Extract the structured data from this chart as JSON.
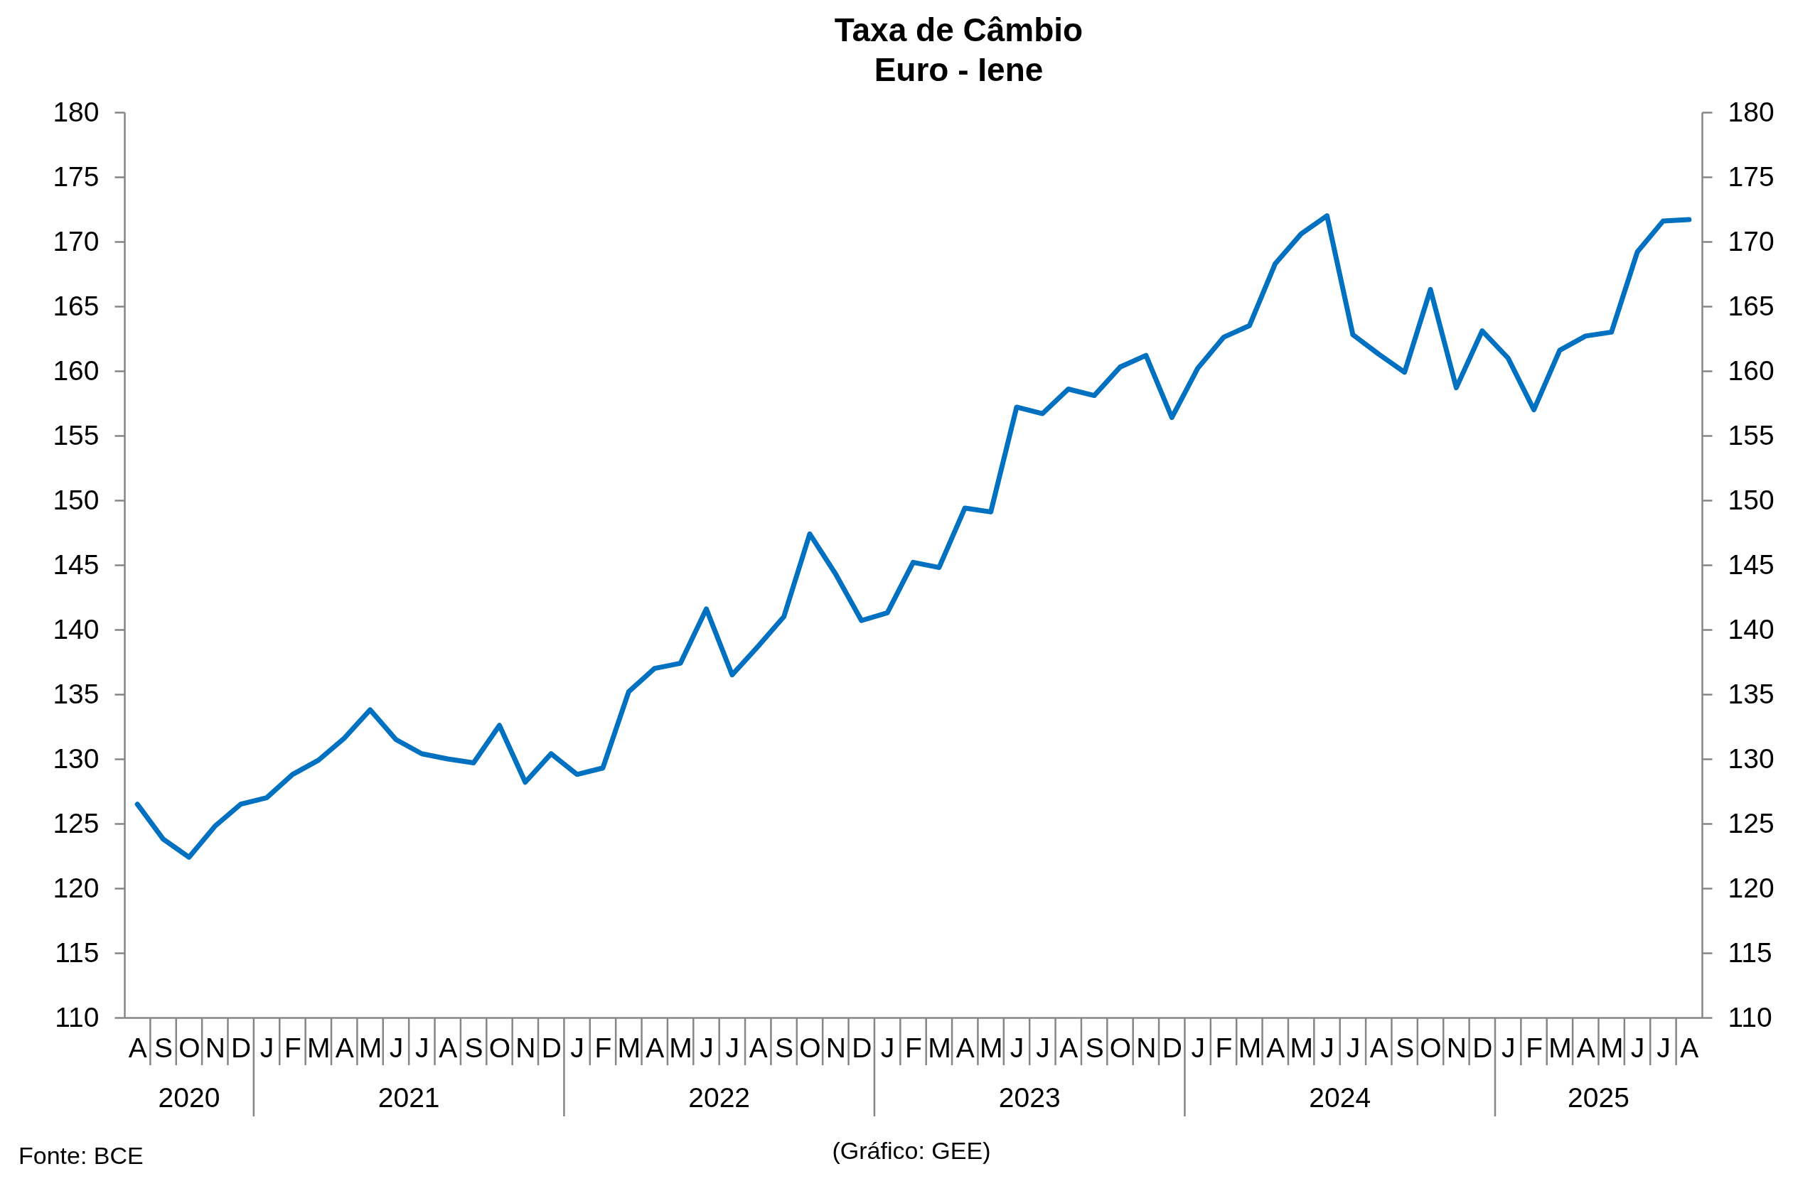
{
  "chart_data": {
    "type": "line",
    "title": "Taxa de Câmbio",
    "subtitle": "Euro - Iene",
    "categories": [
      "A",
      "S",
      "O",
      "N",
      "D",
      "J",
      "F",
      "M",
      "A",
      "M",
      "J",
      "J",
      "A",
      "S",
      "O",
      "N",
      "D",
      "J",
      "F",
      "M",
      "A",
      "M",
      "J",
      "J",
      "A",
      "S",
      "O",
      "N",
      "D",
      "J",
      "F",
      "M",
      "A",
      "M",
      "J",
      "J",
      "A",
      "S",
      "O",
      "N",
      "D",
      "J",
      "F",
      "M",
      "A",
      "M",
      "J",
      "J",
      "A",
      "S",
      "O",
      "N",
      "D",
      "J",
      "F",
      "M",
      "A",
      "M",
      "J",
      "J",
      "A"
    ],
    "values": [
      126.5,
      123.8,
      122.4,
      124.8,
      126.5,
      127.0,
      128.8,
      129.9,
      131.6,
      133.8,
      131.5,
      130.4,
      130.0,
      129.7,
      132.6,
      128.2,
      130.4,
      128.8,
      129.3,
      135.2,
      137.0,
      137.4,
      141.6,
      136.5,
      138.7,
      141.0,
      147.4,
      144.3,
      140.7,
      141.3,
      145.2,
      144.8,
      149.4,
      149.1,
      157.2,
      156.7,
      158.6,
      158.1,
      160.3,
      161.2,
      156.4,
      160.2,
      162.6,
      163.5,
      168.3,
      170.6,
      172.0,
      162.8,
      161.3,
      159.9,
      166.3,
      158.7,
      163.1,
      161.0,
      157.0,
      161.6,
      162.7,
      163.0,
      169.2,
      171.6,
      171.7
    ],
    "color": "#0070c0",
    "ylim": [
      110,
      180
    ],
    "yticks": [
      110,
      115,
      120,
      125,
      130,
      135,
      140,
      145,
      150,
      155,
      160,
      165,
      170,
      175,
      180
    ],
    "y2lim": [
      110,
      180
    ],
    "y2ticks": [
      110,
      115,
      120,
      125,
      130,
      135,
      140,
      145,
      150,
      155,
      160,
      165,
      170,
      175,
      180
    ],
    "annotations": [
      "2020",
      "2021",
      "2022",
      "2023",
      "2024",
      "2025",
      "Fonte: BCE",
      "(Gráfico: GEE)"
    ]
  }
}
